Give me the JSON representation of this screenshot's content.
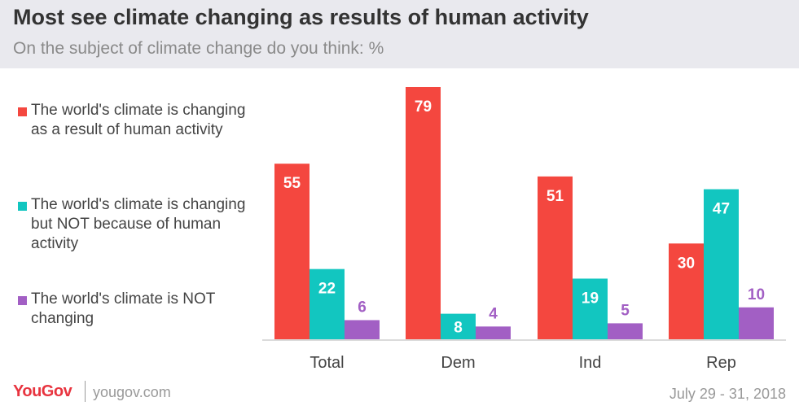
{
  "header": {
    "title": "Most see climate changing as results of human activity",
    "subtitle": "On the subject of climate change do you think: %"
  },
  "chart_data": {
    "type": "bar",
    "categories": [
      "Total",
      "Dem",
      "Ind",
      "Rep"
    ],
    "series": [
      {
        "name": "The world's climate is changing as a result of human activity",
        "color": "#f4473f",
        "values": [
          55,
          79,
          51,
          30
        ]
      },
      {
        "name": "The world's climate is changing but NOT because of human activity",
        "color": "#12c6c0",
        "values": [
          22,
          8,
          19,
          47
        ]
      },
      {
        "name": "The world's climate is NOT changing",
        "color": "#a25fc4",
        "values": [
          6,
          4,
          5,
          10
        ]
      }
    ],
    "ylim": [
      0,
      79
    ],
    "grid": false,
    "legend_position": "left"
  },
  "footer": {
    "brand": "YouGov",
    "site": "yougov.com",
    "date": "July 29 - 31, 2018"
  }
}
